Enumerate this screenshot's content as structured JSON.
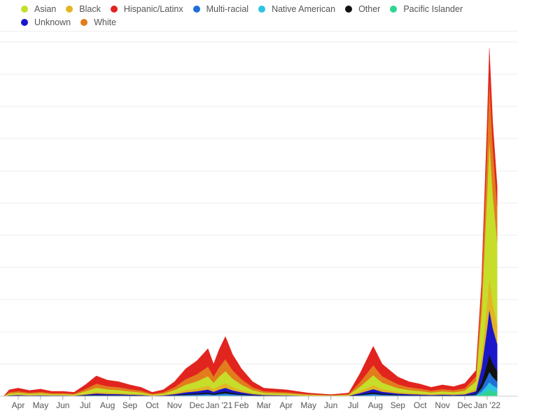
{
  "chart_data": {
    "type": "area",
    "stacked": true,
    "title": "",
    "xlabel": "",
    "ylabel": "",
    "ylim": [
      0,
      11
    ],
    "grid": true,
    "legend_position": "top-left",
    "x_unit": "months since Mar 2020 (1 = Apr 2020)",
    "x_ticks": [
      1,
      2,
      3,
      4,
      5,
      6,
      7,
      8,
      9,
      10,
      11,
      12,
      13,
      14,
      15,
      16,
      17,
      18,
      19,
      20,
      21,
      22
    ],
    "x_tick_labels": [
      "Apr",
      "May",
      "Jun",
      "Jul",
      "Aug",
      "Sep",
      "Oct",
      "Nov",
      "Dec",
      "Jan '21",
      "Feb",
      "Mar",
      "Apr",
      "May",
      "Jun",
      "Jul",
      "Aug",
      "Sep",
      "Oct",
      "Nov",
      "Dec",
      "Jan '22"
    ],
    "x": [
      0.35,
      0.6,
      1.0,
      1.5,
      2.0,
      2.5,
      3.0,
      3.5,
      4.0,
      4.5,
      5.0,
      5.5,
      6.0,
      6.5,
      7.0,
      7.5,
      8.0,
      8.5,
      9.0,
      9.5,
      9.75,
      10.0,
      10.28,
      10.6,
      11.0,
      11.5,
      12.0,
      13.0,
      14.0,
      15.0,
      15.8,
      16.3,
      16.9,
      17.3,
      18.0,
      18.5,
      19.0,
      19.5,
      20.0,
      20.5,
      21.0,
      21.5,
      21.75,
      22.0,
      22.1,
      22.25,
      22.45
    ],
    "stack_order": [
      "Pacific Islander",
      "Native American",
      "Multi-racial",
      "Other",
      "Unknown",
      "Black",
      "Asian",
      "White",
      "Hispanic/Latinx"
    ],
    "series": [
      {
        "name": "Asian",
        "color": "#c6dd2a",
        "values": [
          0,
          0.04,
          0.05,
          0.036,
          0.044,
          0.03,
          0.03,
          0.024,
          0.07,
          0.126,
          0.1,
          0.09,
          0.07,
          0.056,
          0.024,
          0.04,
          0.09,
          0.17,
          0.22,
          0.296,
          0.2,
          0.29,
          0.37,
          0.26,
          0.17,
          0.09,
          0.05,
          0.04,
          0.02,
          0.01,
          0.02,
          0.14,
          0.31,
          0.2,
          0.12,
          0.09,
          0.076,
          0.056,
          0.07,
          0.06,
          0.08,
          0.24,
          1.4,
          3.4,
          4.32,
          3.4,
          2.6
        ]
      },
      {
        "name": "Black",
        "color": "#e3b524",
        "values": [
          0,
          0.016,
          0.02,
          0.014,
          0.018,
          0.012,
          0.012,
          0.01,
          0.028,
          0.05,
          0.04,
          0.036,
          0.028,
          0.022,
          0.01,
          0.016,
          0.036,
          0.068,
          0.088,
          0.118,
          0.08,
          0.116,
          0.148,
          0.104,
          0.068,
          0.036,
          0.02,
          0.016,
          0.008,
          0.004,
          0.008,
          0.056,
          0.124,
          0.08,
          0.048,
          0.036,
          0.03,
          0.022,
          0.028,
          0.024,
          0.032,
          0.068,
          0.315,
          0.765,
          0.972,
          0.765,
          0.585
        ]
      },
      {
        "name": "Hispanic/Latinx",
        "color": "#e2241e",
        "values": [
          0,
          0.076,
          0.095,
          0.068,
          0.084,
          0.057,
          0.057,
          0.046,
          0.133,
          0.24,
          0.19,
          0.171,
          0.133,
          0.106,
          0.046,
          0.076,
          0.171,
          0.323,
          0.418,
          0.562,
          0.38,
          0.551,
          0.703,
          0.494,
          0.323,
          0.171,
          0.095,
          0.076,
          0.038,
          0.019,
          0.038,
          0.266,
          0.589,
          0.38,
          0.228,
          0.171,
          0.144,
          0.106,
          0.133,
          0.114,
          0.152,
          0.188,
          0.315,
          0.765,
          0.972,
          0.765,
          0.585
        ]
      },
      {
        "name": "Multi-racial",
        "color": "#1f6fd6",
        "values": [
          0,
          0.006,
          0.008,
          0.005,
          0.007,
          0.005,
          0.005,
          0.004,
          0.011,
          0.019,
          0.015,
          0.014,
          0.011,
          0.008,
          0.004,
          0.006,
          0.014,
          0.026,
          0.033,
          0.044,
          0.03,
          0.044,
          0.056,
          0.039,
          0.026,
          0.014,
          0.008,
          0.006,
          0.003,
          0.002,
          0.003,
          0.021,
          0.047,
          0.03,
          0.018,
          0.014,
          0.011,
          0.008,
          0.011,
          0.009,
          0.012,
          0.024,
          0.105,
          0.255,
          0.324,
          0.255,
          0.195
        ]
      },
      {
        "name": "Native American",
        "color": "#2cc4e2",
        "values": [
          0,
          0.002,
          0.003,
          0.002,
          0.002,
          0.002,
          0.002,
          0.001,
          0.004,
          0.006,
          0.005,
          0.005,
          0.004,
          0.003,
          0.001,
          0.002,
          0.005,
          0.009,
          0.011,
          0.015,
          0.01,
          0.015,
          0.019,
          0.013,
          0.009,
          0.005,
          0.003,
          0.002,
          0.001,
          0.001,
          0.001,
          0.007,
          0.016,
          0.01,
          0.006,
          0.005,
          0.004,
          0.003,
          0.004,
          0.003,
          0.004,
          0.012,
          0.07,
          0.17,
          0.216,
          0.17,
          0.13
        ]
      },
      {
        "name": "Other",
        "color": "#111111",
        "values": [
          0,
          0.006,
          0.008,
          0.005,
          0.007,
          0.005,
          0.005,
          0.004,
          0.011,
          0.019,
          0.015,
          0.014,
          0.011,
          0.008,
          0.004,
          0.006,
          0.014,
          0.026,
          0.033,
          0.044,
          0.03,
          0.044,
          0.056,
          0.039,
          0.026,
          0.014,
          0.008,
          0.006,
          0.003,
          0.002,
          0.003,
          0.021,
          0.047,
          0.03,
          0.018,
          0.014,
          0.011,
          0.008,
          0.011,
          0.009,
          0.012,
          0.032,
          0.175,
          0.425,
          0.54,
          0.425,
          0.325
        ]
      },
      {
        "name": "Pacific Islander",
        "color": "#2fd490",
        "values": [
          0,
          0.002,
          0.003,
          0.002,
          0.002,
          0.002,
          0.002,
          0.001,
          0.004,
          0.006,
          0.005,
          0.005,
          0.004,
          0.003,
          0.001,
          0.002,
          0.005,
          0.009,
          0.011,
          0.015,
          0.01,
          0.015,
          0.019,
          0.013,
          0.009,
          0.005,
          0.003,
          0.002,
          0.001,
          0.001,
          0.001,
          0.007,
          0.016,
          0.01,
          0.006,
          0.005,
          0.004,
          0.003,
          0.004,
          0.003,
          0.004,
          0.012,
          0.07,
          0.17,
          0.216,
          0.17,
          0.13
        ]
      },
      {
        "name": "Unknown",
        "color": "#1a16c9",
        "values": [
          0,
          0.012,
          0.015,
          0.011,
          0.013,
          0.009,
          0.009,
          0.007,
          0.021,
          0.038,
          0.03,
          0.027,
          0.021,
          0.017,
          0.007,
          0.012,
          0.027,
          0.051,
          0.066,
          0.089,
          0.06,
          0.087,
          0.111,
          0.078,
          0.051,
          0.027,
          0.015,
          0.012,
          0.006,
          0.003,
          0.006,
          0.042,
          0.093,
          0.06,
          0.036,
          0.027,
          0.023,
          0.017,
          0.021,
          0.018,
          0.024,
          0.076,
          0.455,
          1.105,
          1.404,
          1.105,
          0.845
        ]
      },
      {
        "name": "White",
        "color": "#e27c1c",
        "values": [
          0,
          0.04,
          0.05,
          0.036,
          0.044,
          0.03,
          0.03,
          0.024,
          0.07,
          0.126,
          0.1,
          0.09,
          0.07,
          0.056,
          0.024,
          0.04,
          0.09,
          0.17,
          0.22,
          0.296,
          0.2,
          0.29,
          0.37,
          0.26,
          0.17,
          0.09,
          0.05,
          0.04,
          0.02,
          0.01,
          0.02,
          0.14,
          0.31,
          0.2,
          0.12,
          0.09,
          0.076,
          0.056,
          0.07,
          0.06,
          0.08,
          0.148,
          0.595,
          1.445,
          1.836,
          1.445,
          1.105
        ]
      }
    ]
  }
}
